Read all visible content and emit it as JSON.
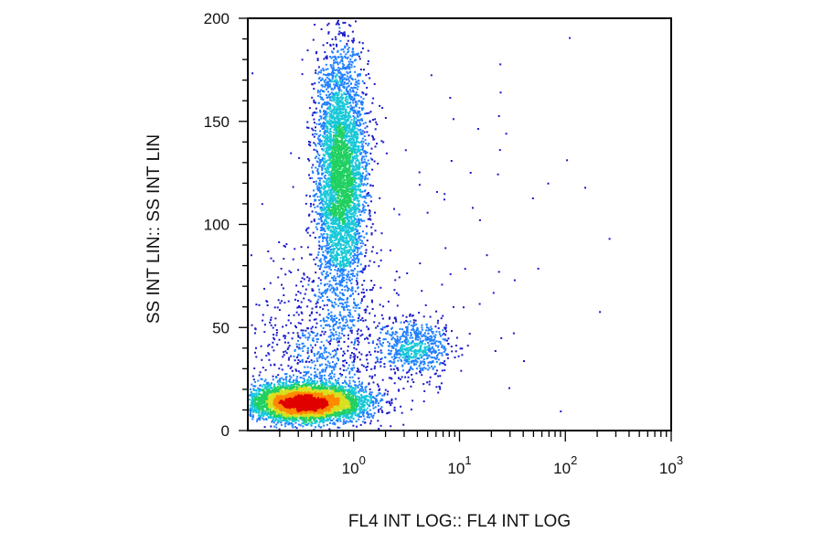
{
  "chart_data": {
    "type": "scatter",
    "subtype": "flow-cytometry-density-dot-plot",
    "title": "",
    "xlabel": "FL4 INT LOG:: FL4 INT LOG",
    "ylabel": "SS INT LIN:: SS INT LIN",
    "x_scale": "log",
    "xlim": [
      0.1,
      1000
    ],
    "ylim": [
      0,
      200
    ],
    "x_ticks": [
      {
        "value": 1,
        "base": "10",
        "exp": "0"
      },
      {
        "value": 10,
        "base": "10",
        "exp": "1"
      },
      {
        "value": 100,
        "base": "10",
        "exp": "2"
      },
      {
        "value": 1000,
        "base": "10",
        "exp": "3"
      }
    ],
    "y_ticks": [
      {
        "value": 0,
        "label": "0"
      },
      {
        "value": 50,
        "label": "50"
      },
      {
        "value": 100,
        "label": "100"
      },
      {
        "value": 150,
        "label": "150"
      },
      {
        "value": 200,
        "label": "200"
      }
    ],
    "grid": false,
    "legend": "none",
    "color_scale": [
      "#1a1acc",
      "#1f7fff",
      "#18c8d8",
      "#20d060",
      "#d8e020",
      "#ff8a00",
      "#e00000"
    ],
    "populations": [
      {
        "x_center": 0.35,
        "x_spread_decades": 0.28,
        "y_center": 14,
        "y_spread": 4.5,
        "count": 5200
      },
      {
        "x_center": 0.75,
        "x_spread_decades": 0.12,
        "y_center": 125,
        "y_spread": 30,
        "count": 4200
      },
      {
        "x_center": 3.8,
        "x_spread_decades": 0.17,
        "y_center": 41,
        "y_spread": 7,
        "count": 650
      },
      {
        "x_center": 0.5,
        "x_spread_decades": 0.35,
        "y_center": 40,
        "y_spread": 20,
        "count": 900
      },
      {
        "x_center": 5,
        "x_spread_decades": 0.9,
        "y_center": 90,
        "y_spread": 55,
        "count": 90
      }
    ]
  }
}
